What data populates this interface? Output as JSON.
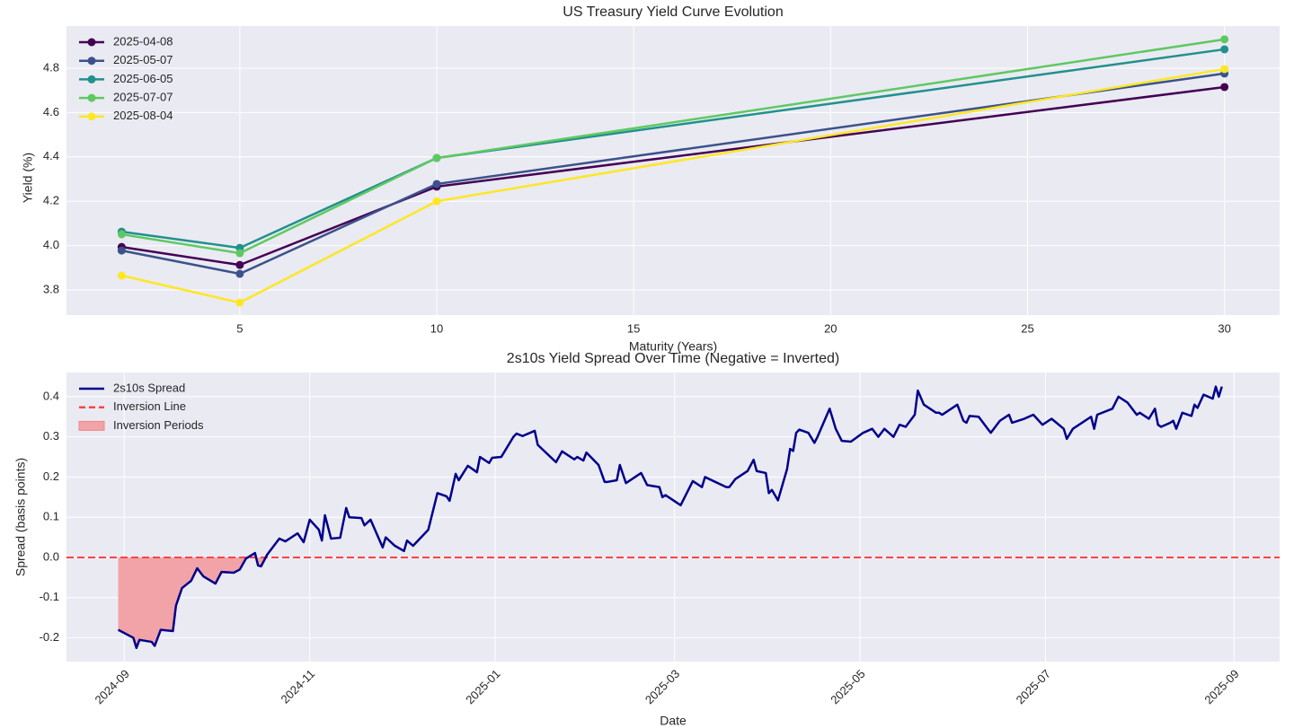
{
  "chart_data": [
    {
      "type": "line",
      "title": "US Treasury Yield Curve Evolution",
      "xlabel": "Maturity (Years)",
      "ylabel": "Yield (%)",
      "x": [
        2,
        5,
        10,
        30
      ],
      "series": [
        {
          "name": "2025-04-08",
          "color": "#440154",
          "values": [
            3.994,
            3.913,
            4.266,
            4.715
          ]
        },
        {
          "name": "2025-05-07",
          "color": "#3b528b",
          "values": [
            3.978,
            3.873,
            4.278,
            4.776
          ]
        },
        {
          "name": "2025-06-05",
          "color": "#21918c",
          "values": [
            4.063,
            3.99,
            4.395,
            4.885
          ]
        },
        {
          "name": "2025-07-07",
          "color": "#5ec962",
          "values": [
            4.051,
            3.966,
            4.395,
            4.93
          ]
        },
        {
          "name": "2025-08-04",
          "color": "#fde725",
          "values": [
            3.865,
            3.743,
            4.2,
            4.796
          ]
        }
      ],
      "markers": true,
      "xlim": [
        0.6,
        31.4
      ],
      "xticks": [
        5,
        10,
        15,
        20,
        25,
        30
      ],
      "ylim": [
        3.687,
        4.99
      ],
      "yticks": [
        3.8,
        {
          "value": 4.0,
          "label": "4.0"
        },
        4.2,
        4.4,
        4.6,
        4.8
      ],
      "grid": true,
      "legend": "upper left"
    },
    {
      "type": "line",
      "title": "2s10s Yield Spread Over Time (Negative = Inverted)",
      "xlabel": "Date",
      "ylabel": "Spread (basis points)",
      "x": [
        "2024-08-30",
        "2024-09-04",
        "2024-09-05",
        "2024-09-06",
        "2024-09-10",
        "2024-09-11",
        "2024-09-13",
        "2024-09-17",
        "2024-09-18",
        "2024-09-20",
        "2024-09-23",
        "2024-09-25",
        "2024-09-27",
        "2024-10-01",
        "2024-10-03",
        "2024-10-07",
        "2024-10-09",
        "2024-10-11",
        "2024-10-14",
        "2024-10-15",
        "2024-10-16",
        "2024-10-18",
        "2024-10-22",
        "2024-10-24",
        "2024-10-28",
        "2024-10-30",
        "2024-11-01",
        "2024-11-04",
        "2024-11-05",
        "2024-11-06",
        "2024-11-08",
        "2024-11-11",
        "2024-11-13",
        "2024-11-14",
        "2024-11-18",
        "2024-11-19",
        "2024-11-21",
        "2024-11-25",
        "2024-11-26",
        "2024-11-29",
        "2024-12-02",
        "2024-12-03",
        "2024-12-05",
        "2024-12-10",
        "2024-12-13",
        "2024-12-16",
        "2024-12-17",
        "2024-12-19",
        "2024-12-20",
        "2024-12-23",
        "2024-12-26",
        "2024-12-27",
        "2024-12-30",
        "2024-12-31",
        "2025-01-03",
        "2025-01-07",
        "2025-01-08",
        "2025-01-10",
        "2025-01-14",
        "2025-01-15",
        "2025-01-21",
        "2025-01-23",
        "2025-01-27",
        "2025-01-28",
        "2025-01-30",
        "2025-01-31",
        "2025-02-04",
        "2025-02-06",
        "2025-02-07",
        "2025-02-10",
        "2025-02-11",
        "2025-02-13",
        "2025-02-18",
        "2025-02-20",
        "2025-02-24",
        "2025-02-25",
        "2025-02-26",
        "2025-03-03",
        "2025-03-07",
        "2025-03-10",
        "2025-03-11",
        "2025-03-18",
        "2025-03-19",
        "2025-03-21",
        "2025-03-25",
        "2025-03-27",
        "2025-03-28",
        "2025-03-31",
        "2025-04-01",
        "2025-04-02",
        "2025-04-04",
        "2025-04-07",
        "2025-04-08",
        "2025-04-09",
        "2025-04-10",
        "2025-04-11",
        "2025-04-14",
        "2025-04-16",
        "2025-04-17",
        "2025-04-21",
        "2025-04-23",
        "2025-04-25",
        "2025-04-28",
        "2025-05-02",
        "2025-05-05",
        "2025-05-07",
        "2025-05-09",
        "2025-05-12",
        "2025-05-14",
        "2025-05-16",
        "2025-05-19",
        "2025-05-20",
        "2025-05-22",
        "2025-05-26",
        "2025-05-27",
        "2025-05-28",
        "2025-06-02",
        "2025-06-04",
        "2025-06-05",
        "2025-06-06",
        "2025-06-09",
        "2025-06-12",
        "2025-06-13",
        "2025-06-16",
        "2025-06-19",
        "2025-06-20",
        "2025-06-24",
        "2025-06-27",
        "2025-06-30",
        "2025-07-03",
        "2025-07-07",
        "2025-07-08",
        "2025-07-10",
        "2025-07-16",
        "2025-07-17",
        "2025-07-18",
        "2025-07-23",
        "2025-07-25",
        "2025-07-28",
        "2025-07-31",
        "2025-08-01",
        "2025-08-04",
        "2025-08-06",
        "2025-08-07",
        "2025-08-08",
        "2025-08-11",
        "2025-08-12",
        "2025-08-13",
        "2025-08-15",
        "2025-08-18",
        "2025-08-19",
        "2025-08-20",
        "2025-08-22",
        "2025-08-25",
        "2025-08-26",
        "2025-08-27",
        "2025-08-28"
      ],
      "series": [
        {
          "name": "2s10s Spread",
          "color": "#00008b",
          "values": [
            -0.18,
            -0.2,
            -0.225,
            -0.205,
            -0.21,
            -0.22,
            -0.18,
            -0.183,
            -0.12,
            -0.076,
            -0.058,
            -0.027,
            -0.047,
            -0.065,
            -0.036,
            -0.038,
            -0.03,
            -0.003,
            0.011,
            -0.02,
            -0.022,
            0.007,
            0.047,
            0.04,
            0.06,
            0.038,
            0.094,
            0.069,
            0.042,
            0.105,
            0.047,
            0.049,
            0.123,
            0.1,
            0.098,
            0.08,
            0.094,
            0.025,
            0.05,
            0.029,
            0.016,
            0.042,
            0.029,
            0.069,
            0.16,
            0.152,
            0.141,
            0.208,
            0.192,
            0.228,
            0.212,
            0.25,
            0.235,
            0.248,
            0.25,
            0.3,
            0.308,
            0.302,
            0.315,
            0.28,
            0.237,
            0.264,
            0.244,
            0.25,
            0.241,
            0.261,
            0.23,
            0.188,
            0.188,
            0.192,
            0.23,
            0.185,
            0.21,
            0.18,
            0.175,
            0.15,
            0.155,
            0.13,
            0.19,
            0.175,
            0.2,
            0.175,
            0.175,
            0.195,
            0.215,
            0.243,
            0.215,
            0.21,
            0.16,
            0.168,
            0.142,
            0.22,
            0.27,
            0.265,
            0.31,
            0.318,
            0.31,
            0.285,
            0.3,
            0.37,
            0.32,
            0.29,
            0.288,
            0.31,
            0.32,
            0.3,
            0.32,
            0.3,
            0.33,
            0.325,
            0.355,
            0.415,
            0.38,
            0.36,
            0.36,
            0.355,
            0.38,
            0.34,
            0.335,
            0.352,
            0.35,
            0.32,
            0.31,
            0.34,
            0.355,
            0.335,
            0.345,
            0.355,
            0.33,
            0.345,
            0.32,
            0.295,
            0.32,
            0.35,
            0.32,
            0.355,
            0.37,
            0.4,
            0.385,
            0.355,
            0.36,
            0.345,
            0.37,
            0.33,
            0.325,
            0.335,
            0.34,
            0.32,
            0.36,
            0.352,
            0.38,
            0.372,
            0.405,
            0.395,
            0.425,
            0.4,
            0.425
          ]
        }
      ],
      "reference_line": {
        "name": "Inversion Line",
        "value": 0,
        "color": "#ff4444"
      },
      "fill_below": {
        "name": "Inversion Periods",
        "color": "#f2a3a8"
      },
      "xlim": [
        "2024-08-13",
        "2025-09-16"
      ],
      "xticks": [
        {
          "value": "2024-09-01",
          "label": "2024-09"
        },
        {
          "value": "2024-11-01",
          "label": "2024-11"
        },
        {
          "value": "2025-01-01",
          "label": "2025-01"
        },
        {
          "value": "2025-03-01",
          "label": "2025-03"
        },
        {
          "value": "2025-05-01",
          "label": "2025-05"
        },
        {
          "value": "2025-07-01",
          "label": "2025-07"
        },
        {
          "value": "2025-09-01",
          "label": "2025-09"
        }
      ],
      "xtick_rotation": 45,
      "ylim": [
        -0.259,
        0.46
      ],
      "yticks": [
        -0.2,
        -0.1,
        {
          "value": 0,
          "label": "0.0"
        },
        0.1,
        0.2,
        0.3,
        0.4
      ],
      "grid": true,
      "legend": "upper left"
    }
  ]
}
